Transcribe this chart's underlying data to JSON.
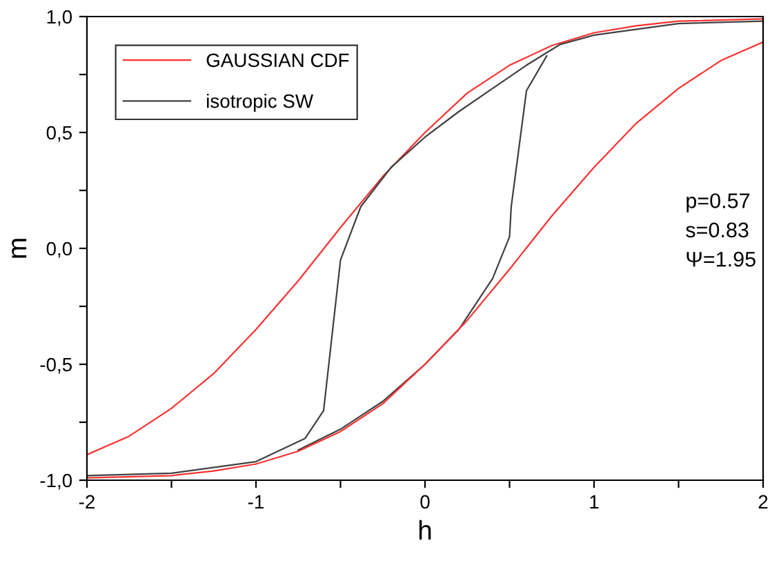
{
  "chart_data": {
    "type": "line",
    "xlabel": "h",
    "ylabel": "m",
    "xlim": [
      -2,
      2
    ],
    "ylim": [
      -1,
      1
    ],
    "xticks": [
      -2,
      {
        "value": -1.5,
        "label": null
      },
      -1,
      {
        "value": -0.5,
        "label": null
      },
      0,
      {
        "value": 0.5,
        "label": null
      },
      1,
      {
        "value": 1.5,
        "label": null
      },
      2
    ],
    "yticks": [
      {
        "value": -1,
        "label": "-1,0"
      },
      {
        "value": -0.75,
        "label": null
      },
      {
        "value": -0.5,
        "label": "-0,5"
      },
      {
        "value": -0.25,
        "label": null
      },
      {
        "value": 0,
        "label": "0,0"
      },
      {
        "value": 0.25,
        "label": null
      },
      {
        "value": 0.5,
        "label": "0,5"
      },
      {
        "value": 0.75,
        "label": null
      },
      {
        "value": 1,
        "label": "1,0"
      }
    ],
    "series": [
      {
        "name": "GAUSSIAN CDF",
        "color": "#ff3030",
        "x": [
          -2,
          -1.75,
          -1.5,
          -1.25,
          -1,
          -0.75,
          -0.5,
          -0.25,
          0,
          0.25,
          0.5,
          0.75,
          1,
          1.25,
          1.5,
          2
        ],
        "values": [
          -0.89,
          -0.81,
          -0.69,
          -0.54,
          -0.35,
          -0.14,
          0.09,
          0.31,
          0.5,
          0.67,
          0.79,
          0.875,
          0.93,
          0.96,
          0.98,
          0.99
        ]
      },
      {
        "name": "isotropic SW",
        "color": "#404040",
        "x": [
          -2,
          -1.5,
          -1,
          -0.71,
          -0.6,
          -0.5,
          -0.38,
          -0.2,
          0,
          0.2,
          0.4,
          0.6,
          0.8,
          1,
          1.5,
          2
        ],
        "values": [
          -0.98,
          -0.97,
          -0.92,
          -0.82,
          -0.7,
          -0.05,
          0.18,
          0.35,
          0.48,
          0.59,
          0.69,
          0.79,
          0.88,
          0.92,
          0.97,
          0.98
        ]
      },
      {
        "color": "#404040",
        "x": [
          -0.75,
          -0.5,
          -0.25,
          0,
          0.2,
          0.4,
          0.5,
          0.51,
          0.6,
          0.72
        ],
        "values": [
          -0.87,
          -0.78,
          -0.66,
          -0.5,
          -0.35,
          -0.13,
          0.05,
          0.18,
          0.68,
          0.83
        ]
      },
      {
        "color": "#ff3030",
        "x": [
          -2,
          -1.5,
          -1.25,
          -1,
          -0.75,
          -0.5,
          -0.25,
          0,
          0.25,
          0.5,
          0.75,
          1,
          1.25,
          1.5,
          1.75,
          2
        ],
        "values": [
          -0.99,
          -0.98,
          -0.96,
          -0.93,
          -0.875,
          -0.79,
          -0.67,
          -0.5,
          -0.31,
          -0.09,
          0.14,
          0.35,
          0.54,
          0.69,
          0.81,
          0.89
        ]
      }
    ],
    "legend": "top left",
    "marker": "none",
    "line_style": "solid",
    "grid": false,
    "annotations": [
      "p=0.57",
      "s=0.83",
      "Ψ=1.95"
    ]
  }
}
